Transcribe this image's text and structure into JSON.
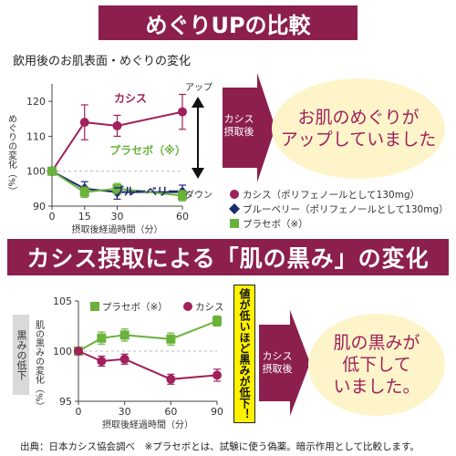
{
  "banner1": "めぐりUPの比較",
  "banner2": "カシス摂取による「肌の黒み」の変化",
  "footer": "出典：日本カシス協会調べ　※プラセボとは、試験に使う偽薬。暗示作用として比較します。",
  "colors": {
    "magenta": "#a0215b",
    "navy": "#1e2a6e",
    "green": "#6ab23c",
    "banner": "#8c1f4e"
  },
  "chart_data": [
    {
      "type": "line",
      "title": "飲用後のお肌表面・めぐりの変化",
      "xlabel": "摂取後経過時間（分）",
      "ylabel": "めぐりの変化（%）",
      "x": [
        0,
        15,
        30,
        60
      ],
      "xticks": [
        0,
        15,
        30,
        60
      ],
      "yticks": [
        90,
        100,
        110,
        120
      ],
      "ylim": [
        90,
        125
      ],
      "series": [
        {
          "name": "カシス",
          "values": [
            100,
            114,
            113,
            117
          ],
          "err": [
            0,
            5,
            3,
            5
          ],
          "color": "#a0215b",
          "marker": "circle"
        },
        {
          "name": "ブルーベリー",
          "values": [
            100,
            95,
            94,
            94
          ],
          "err": [
            0,
            2,
            2,
            2
          ],
          "color": "#1e2a6e",
          "marker": "diamond"
        },
        {
          "name": "プラセボ（※）",
          "values": [
            100,
            94,
            95,
            93
          ],
          "err": [
            0,
            1.5,
            1.5,
            1.5
          ],
          "color": "#6ab23c",
          "marker": "square"
        }
      ],
      "series_labels": [
        "カシス",
        "ブルーベリー",
        "プラセボ（※）"
      ],
      "legend": [
        "カシス（ポリフェノールとして130mg）",
        "ブルーベリー（ポリフェノールとして130mg）",
        "プラセボ（※）"
      ],
      "arrow_up": "アップ",
      "arrow_down": "ダウン",
      "side_arrow": "カシス\n摂取後",
      "message": "お肌のめぐりが\nアップしていました"
    },
    {
      "type": "line",
      "xlabel": "摂取後経過時間（分）",
      "ylabel": "肌の黒みの変化（%）",
      "side_label": "黒みの低下",
      "x": [
        0,
        15,
        30,
        60,
        90
      ],
      "xticks": [
        0,
        30,
        60,
        90
      ],
      "yticks": [
        95,
        100,
        105
      ],
      "ylim": [
        95,
        105
      ],
      "series": [
        {
          "name": "プラセボ（※）",
          "values": [
            100,
            101.3,
            101.6,
            101.2,
            103
          ],
          "err": [
            0,
            0.6,
            0.6,
            0.6,
            0.5
          ],
          "color": "#6ab23c",
          "marker": "square"
        },
        {
          "name": "カシス",
          "values": [
            100,
            99,
            99.2,
            97.2,
            97.6
          ],
          "err": [
            0,
            0.5,
            0.5,
            0.5,
            0.6
          ],
          "color": "#a0215b",
          "marker": "circle"
        }
      ],
      "callout": "値が低いほど黒みが低下！",
      "side_arrow": "カシス\n摂取後",
      "message": "肌の黒みが\n低下して\nいました。"
    }
  ]
}
